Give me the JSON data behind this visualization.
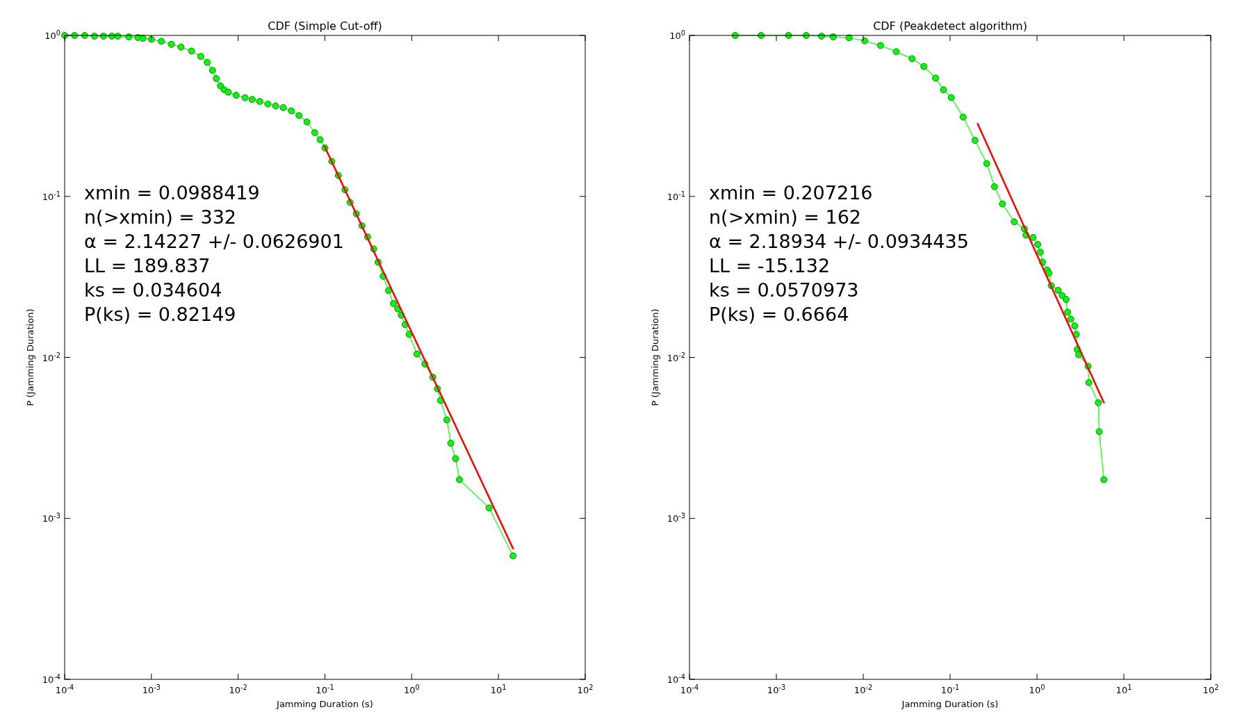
{
  "chart_data": [
    {
      "type": "line",
      "title": "CDF (Simple Cut-off)",
      "xlabel": "Jamming Duration (s)",
      "ylabel": "P (Jamming Duration)",
      "log": "xy",
      "grid": false,
      "xlim": [
        0.0001,
        100
      ],
      "ylim": [
        0.0001,
        1
      ],
      "xticks": [
        {
          "value": 0.0001,
          "label": "10$^{-4}$"
        },
        {
          "value": 0.001,
          "label": "10$^{-3}$"
        },
        {
          "value": 0.01,
          "label": "10$^{-2}$"
        },
        {
          "value": 0.1,
          "label": "10$^{-1}$"
        },
        {
          "value": 1,
          "label": "10$^{0}$"
        },
        {
          "value": 10,
          "label": "10$^{1}$"
        },
        {
          "value": 100,
          "label": "10$^{2}$"
        }
      ],
      "yticks": [
        {
          "value": 0.0001,
          "label": "10$^{-4}$"
        },
        {
          "value": 0.001,
          "label": "10$^{-3}$"
        },
        {
          "value": 0.01,
          "label": "10$^{-2}$"
        },
        {
          "value": 0.1,
          "label": "10$^{-1}$"
        },
        {
          "value": 1,
          "label": "10$^{0}$"
        }
      ],
      "annotations": [
        "xmin = 0.0988419",
        "n(>xmin) = 332",
        "α = 2.14227 +/- 0.0626901",
        "LL = 189.837",
        "ks = 0.034604",
        "P(ks) = 0.82149"
      ],
      "series": [
        {
          "marker": "circle",
          "color": "#00ff00",
          "x": [
            0.0001,
            0.00013,
            0.00017,
            0.00022,
            0.00028,
            0.00035,
            0.00041,
            0.00055,
            0.0007,
            0.0008,
            0.001,
            0.0013,
            0.0017,
            0.00219,
            0.0029,
            0.0037,
            0.0044,
            0.00506,
            0.0056,
            0.00624,
            0.0069,
            0.00767,
            0.00946,
            0.012,
            0.0145,
            0.0177,
            0.022,
            0.027,
            0.0331,
            0.041,
            0.0502,
            0.062,
            0.0762,
            0.088,
            0.1,
            0.12,
            0.1426,
            0.17,
            0.195,
            0.23,
            0.267,
            0.31,
            0.365,
            0.41,
            0.469,
            0.54,
            0.615,
            0.69,
            0.757,
            0.84,
            0.933,
            1.15,
            1.42,
            1.75,
            1.98,
            2.15,
            2.54,
            2.82,
            3.2,
            3.55,
            7.8,
            14.7
          ],
          "values": [
            1.0,
            1.0,
            1.0,
            0.99,
            0.99,
            0.99,
            0.99,
            0.98,
            0.97,
            0.96,
            0.946,
            0.92,
            0.88,
            0.847,
            0.8,
            0.741,
            0.68,
            0.607,
            0.54,
            0.486,
            0.46,
            0.444,
            0.425,
            0.41,
            0.4,
            0.389,
            0.375,
            0.365,
            0.356,
            0.34,
            0.318,
            0.29,
            0.249,
            0.225,
            0.2,
            0.165,
            0.135,
            0.11,
            0.0918,
            0.078,
            0.0658,
            0.056,
            0.0471,
            0.039,
            0.0319,
            0.026,
            0.0216,
            0.02,
            0.0183,
            0.016,
            0.0139,
            0.0105,
            0.0091,
            0.00753,
            0.00638,
            0.0054,
            0.00409,
            0.00293,
            0.00235,
            0.00174,
            0.00116,
            0.000585
          ]
        },
        {
          "marker": "none",
          "color": "#ff0000",
          "x": [
            0.0988,
            14.7
          ],
          "values": [
            0.205,
            0.00065
          ]
        }
      ]
    },
    {
      "type": "line",
      "title": "CDF (Peakdetect algorithm)",
      "xlabel": "Jamming Duration (s)",
      "ylabel": "P (Jamming Duration)",
      "log": "xy",
      "grid": false,
      "xlim": [
        0.0001,
        100
      ],
      "ylim": [
        0.0001,
        1
      ],
      "xticks": [
        {
          "value": 0.0001,
          "label": "10$^{-4}$"
        },
        {
          "value": 0.001,
          "label": "10$^{-3}$"
        },
        {
          "value": 0.01,
          "label": "10$^{-2}$"
        },
        {
          "value": 0.1,
          "label": "10$^{-1}$"
        },
        {
          "value": 1,
          "label": "10$^{0}$"
        },
        {
          "value": 10,
          "label": "10$^{1}$"
        },
        {
          "value": 100,
          "label": "10$^{2}$"
        }
      ],
      "yticks": [
        {
          "value": 0.0001,
          "label": "10$^{-4}$"
        },
        {
          "value": 0.001,
          "label": "10$^{-3}$"
        },
        {
          "value": 0.01,
          "label": "10$^{-2}$"
        },
        {
          "value": 0.1,
          "label": "10$^{-1}$"
        },
        {
          "value": 1,
          "label": "10$^{0}$"
        }
      ],
      "annotations": [
        "xmin = 0.207216",
        "n(>xmin) = 162",
        "α = 2.18934 +/- 0.0934435",
        "LL = -15.132",
        "ks = 0.0570973",
        "P(ks) = 0.6664"
      ],
      "series": [
        {
          "marker": "circle",
          "color": "#00ff00",
          "x": [
            0.000335,
            0.000667,
            0.00138,
            0.0022,
            0.00331,
            0.0045,
            0.00687,
            0.0104,
            0.0158,
            0.024,
            0.0364,
            0.0498,
            0.068,
            0.0838,
            0.103,
            0.141,
            0.193,
            0.264,
            0.324,
            0.4,
            0.547,
            0.716,
            0.746,
            0.901,
            1.02,
            1.09,
            1.16,
            1.31,
            1.37,
            1.46,
            1.75,
            1.95,
            2.16,
            2.25,
            2.45,
            2.72,
            2.83,
            2.9,
            3.02,
            3.87,
            3.95,
            5.08,
            5.19,
            5.87
          ],
          "values": [
            1.0,
            1.0,
            1.0,
            1.0,
            0.99,
            0.98,
            0.967,
            0.925,
            0.866,
            0.792,
            0.717,
            0.641,
            0.543,
            0.459,
            0.411,
            0.311,
            0.223,
            0.16,
            0.115,
            0.0898,
            0.0695,
            0.0629,
            0.0575,
            0.0556,
            0.0503,
            0.0451,
            0.039,
            0.0349,
            0.0334,
            0.0279,
            0.0261,
            0.0242,
            0.0229,
            0.0191,
            0.0173,
            0.0157,
            0.0139,
            0.0112,
            0.0104,
            0.0088,
            0.00697,
            0.00523,
            0.00346,
            0.00174
          ]
        },
        {
          "marker": "none",
          "color": "#ff0000",
          "x": [
            0.207,
            5.87
          ],
          "values": [
            0.283,
            0.00524
          ]
        }
      ]
    }
  ]
}
